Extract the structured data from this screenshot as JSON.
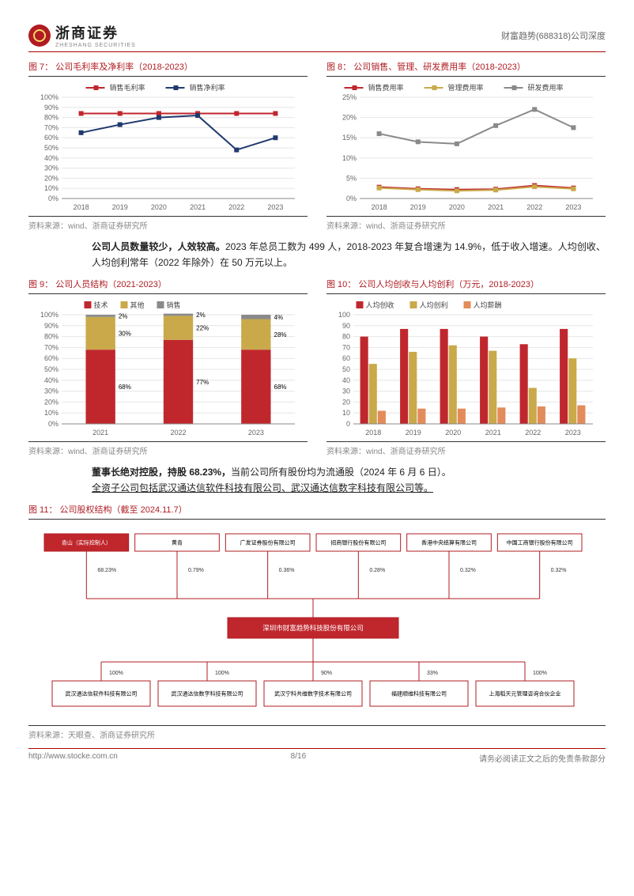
{
  "header": {
    "company": "浙商证券",
    "sub": "ZHESHANG SECURITIES",
    "right": "财富趋势(688318)公司深度"
  },
  "fig7": {
    "title": "图 7：  公司毛利率及净利率（2018-2023）",
    "type": "line",
    "series": [
      {
        "name": "销售毛利率",
        "color": "#c0272d",
        "values": [
          84,
          84,
          84,
          84,
          84,
          84
        ]
      },
      {
        "name": "销售净利率",
        "color": "#1f3a6e",
        "values": [
          65,
          73,
          80,
          82,
          48,
          60
        ]
      }
    ],
    "categories": [
      "2018",
      "2019",
      "2020",
      "2021",
      "2022",
      "2023"
    ],
    "ylim": [
      0,
      100
    ],
    "ytick_step": 10,
    "ysuffix": "%",
    "grid_color": "#e6e6e6",
    "label_fontsize": 9,
    "source": "资料来源：wind、浙商证券研究所"
  },
  "fig8": {
    "title": "图 8：  公司销售、管理、研发费用率（2018-2023）",
    "type": "line",
    "series": [
      {
        "name": "销售费用率",
        "color": "#c0272d",
        "values": [
          2.8,
          2.4,
          2.2,
          2.3,
          3.2,
          2.6
        ]
      },
      {
        "name": "管理费用率",
        "color": "#c9a94a",
        "values": [
          2.6,
          2.2,
          1.9,
          2.1,
          2.9,
          2.4
        ]
      },
      {
        "name": "研发费用率",
        "color": "#8a8a8a",
        "values": [
          16,
          14,
          13.5,
          18,
          22,
          17.5
        ]
      }
    ],
    "categories": [
      "2018",
      "2019",
      "2020",
      "2021",
      "2022",
      "2023"
    ],
    "ylim": [
      0,
      25
    ],
    "ytick_step": 5,
    "ysuffix": "%",
    "grid_color": "#e6e6e6",
    "label_fontsize": 9,
    "source": "资料来源：wind、浙商证券研究所"
  },
  "paragraph1": {
    "lead": "公司人员数量较少，人效较高。",
    "rest": "2023 年总员工数为 499 人，2018-2023 年复合增速为 14.9%，低于收入增速。人均创收、人均创利常年（2022 年除外）在 50 万元以上。"
  },
  "fig9": {
    "title": "图 9：  公司人员结构（2021-2023）",
    "type": "stacked-bar",
    "categories": [
      "2021",
      "2022",
      "2023"
    ],
    "series": [
      {
        "name": "技术",
        "color": "#c0272d",
        "values": [
          68,
          77,
          68
        ],
        "label_color": "#000"
      },
      {
        "name": "其他",
        "color": "#c9a94a",
        "values": [
          30,
          22,
          28
        ],
        "label_color": "#000"
      },
      {
        "name": "销售",
        "color": "#8a8a8a",
        "values": [
          2,
          2,
          4
        ],
        "label_color": "#000"
      }
    ],
    "ylim": [
      0,
      100
    ],
    "ytick_step": 10,
    "ysuffix": "%",
    "grid_color": "#e6e6e6",
    "bar_width": 0.38,
    "label_fontsize": 9,
    "source": "资料来源：wind、浙商证券研究所"
  },
  "fig10": {
    "title": "图 10：  公司人均创收与人均创利（万元，2018-2023）",
    "type": "bar",
    "categories": [
      "2018",
      "2019",
      "2020",
      "2021",
      "2022",
      "2023"
    ],
    "series": [
      {
        "name": "人均创收",
        "color": "#c0272d",
        "values": [
          80,
          87,
          87,
          80,
          73,
          87
        ]
      },
      {
        "name": "人均创利",
        "color": "#c9a94a",
        "values": [
          55,
          66,
          72,
          67,
          33,
          60
        ]
      },
      {
        "name": "人均薪酬",
        "color": "#e38b5a",
        "values": [
          12,
          14,
          14,
          15,
          16,
          17
        ]
      }
    ],
    "ylim": [
      0,
      100
    ],
    "ytick_step": 10,
    "ysuffix": "",
    "grid_color": "#e6e6e6",
    "bar_width": 0.22,
    "label_fontsize": 9,
    "source": "资料来源：wind、浙商证券研究所"
  },
  "paragraph2": {
    "lead": "董事长绝对控股，持股 68.23%，",
    "rest": "当前公司所有股份均为流通股（2024 年 6 月 6 日）。",
    "under": "全资子公司包括武汉通达信软件科技有限公司、武汉通达信数字科技有限公司等。"
  },
  "fig11": {
    "title": "图 11：  公司股权结构（截至 2024.11.7）",
    "type": "org",
    "top_row": [
      {
        "label": "青山（实际控制人）",
        "pct": "68.23%",
        "fill": "#c0272d",
        "text": "#fff"
      },
      {
        "label": "黄青",
        "pct": "0.79%",
        "fill": "#fff",
        "text": "#000"
      },
      {
        "label": "广发证券股份有限公司",
        "pct": "0.36%",
        "fill": "#fff",
        "text": "#000"
      },
      {
        "label": "招商银行股份有限公司",
        "pct": "0.28%",
        "fill": "#fff",
        "text": "#000"
      },
      {
        "label": "香港中央结算有限公司",
        "pct": "0.32%",
        "fill": "#fff",
        "text": "#000"
      },
      {
        "label": "中国工商银行股份有限公司",
        "pct": "0.32%",
        "fill": "#fff",
        "text": "#000"
      }
    ],
    "center": {
      "label": "深圳市财富趋势科技股份有限公司",
      "fill": "#c0272d",
      "text": "#fff"
    },
    "bottom_row": [
      {
        "label": "武汉通达信软件科技有限公司",
        "pct": "100%"
      },
      {
        "label": "武汉通达信数字科技有限公司",
        "pct": "100%"
      },
      {
        "label": "武汉宁科共维数字技术有限公司",
        "pct": "90%"
      },
      {
        "label": "福建顺维科技有限公司",
        "pct": "33%"
      },
      {
        "label": "上海稻天元管理咨询合伙企业",
        "pct": "100%"
      }
    ],
    "line_color": "#b01c22",
    "box_border": "#b01c22",
    "label_fontsize": 7,
    "source": "资料来源：天眼查、浙商证券研究所"
  },
  "footer": {
    "left": "http://www.stocke.com.cn",
    "mid": "8/16",
    "right": "请务必阅读正文之后的免责条款部分"
  }
}
